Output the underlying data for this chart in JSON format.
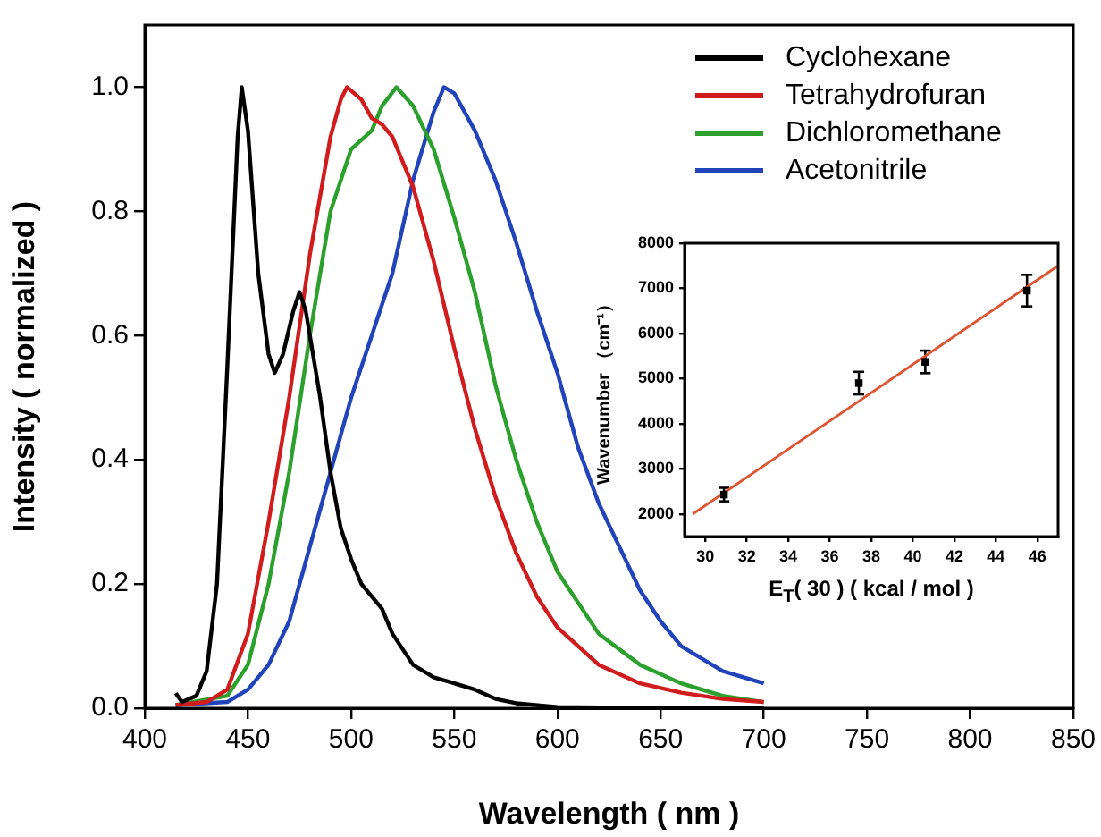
{
  "chart_data": [
    {
      "type": "line",
      "xlabel": "Wavelength ( nm )",
      "ylabel": "Intensity ( normalized )",
      "xlim": [
        400,
        850
      ],
      "xticks": [
        400,
        450,
        500,
        550,
        600,
        650,
        700,
        750,
        800,
        850
      ],
      "ylim": [
        0,
        1.1
      ],
      "yticks": [
        {
          "value": 0,
          "label": "0.0"
        },
        {
          "value": 0.2,
          "label": "0.2"
        },
        {
          "value": 0.4,
          "label": "0.4"
        },
        {
          "value": 0.6,
          "label": "0.6"
        },
        {
          "value": 0.8,
          "label": "0.8"
        },
        {
          "value": 1,
          "label": "1.0"
        }
      ],
      "legend": "top right",
      "series": [
        {
          "name": "Cyclohexane",
          "color": "#000000",
          "x": [
            415,
            418,
            425,
            430,
            435,
            440,
            445,
            447,
            450,
            455,
            460,
            463,
            467,
            472,
            475,
            478,
            485,
            490,
            495,
            500,
            505,
            510,
            515,
            520,
            530,
            540,
            550,
            560,
            570,
            580,
            600,
            650,
            700
          ],
          "values": [
            0.024,
            0.01,
            0.02,
            0.06,
            0.2,
            0.55,
            0.92,
            1.0,
            0.93,
            0.7,
            0.57,
            0.54,
            0.57,
            0.64,
            0.67,
            0.64,
            0.5,
            0.38,
            0.29,
            0.24,
            0.2,
            0.18,
            0.16,
            0.12,
            0.07,
            0.05,
            0.04,
            0.03,
            0.015,
            0.008,
            0.002,
            0,
            0
          ]
        },
        {
          "name": "Tetrahydrofuran",
          "color": "#d01c1c",
          "x": [
            415,
            430,
            440,
            450,
            460,
            470,
            480,
            490,
            495,
            498,
            505,
            510,
            515,
            520,
            530,
            540,
            550,
            560,
            570,
            580,
            590,
            600,
            620,
            640,
            660,
            680,
            700
          ],
          "values": [
            0.005,
            0.01,
            0.03,
            0.12,
            0.3,
            0.5,
            0.73,
            0.92,
            0.98,
            1.0,
            0.98,
            0.95,
            0.94,
            0.92,
            0.84,
            0.72,
            0.58,
            0.45,
            0.34,
            0.25,
            0.18,
            0.13,
            0.07,
            0.04,
            0.025,
            0.015,
            0.01
          ]
        },
        {
          "name": "Dichloromethane",
          "color": "#2ca02c",
          "x": [
            415,
            440,
            450,
            460,
            470,
            480,
            490,
            500,
            510,
            515,
            522,
            530,
            540,
            550,
            560,
            570,
            580,
            590,
            600,
            620,
            640,
            660,
            680,
            700
          ],
          "values": [
            0.005,
            0.02,
            0.07,
            0.2,
            0.38,
            0.6,
            0.8,
            0.9,
            0.93,
            0.97,
            1.0,
            0.97,
            0.9,
            0.79,
            0.67,
            0.52,
            0.4,
            0.3,
            0.22,
            0.12,
            0.07,
            0.04,
            0.02,
            0.01
          ]
        },
        {
          "name": "Acetonitrile",
          "color": "#2244bb",
          "x": [
            415,
            440,
            450,
            460,
            470,
            480,
            490,
            500,
            510,
            520,
            530,
            540,
            545,
            550,
            560,
            570,
            580,
            590,
            600,
            610,
            620,
            630,
            640,
            650,
            660,
            680,
            700
          ],
          "values": [
            0.005,
            0.01,
            0.03,
            0.07,
            0.14,
            0.26,
            0.38,
            0.5,
            0.6,
            0.7,
            0.85,
            0.96,
            1.0,
            0.99,
            0.93,
            0.85,
            0.75,
            0.64,
            0.54,
            0.42,
            0.33,
            0.26,
            0.19,
            0.14,
            0.1,
            0.06,
            0.04
          ]
        }
      ]
    },
    {
      "type": "scatter",
      "xlabel": "E$_{T}$( 30 ) ( kcal / mol )",
      "ylabel": "Wavenumber （cm⁻¹）",
      "xlim": [
        29,
        47
      ],
      "xticks": [
        30,
        32,
        34,
        36,
        38,
        40,
        42,
        44,
        46
      ],
      "ylim": [
        1500,
        8000
      ],
      "yticks": [
        2000,
        3000,
        4000,
        5000,
        6000,
        7000,
        8000
      ],
      "marker": "square",
      "series": [
        {
          "color": "#000000",
          "x": [
            30.9,
            37.4,
            40.6,
            45.5
          ],
          "values": [
            2430,
            4900,
            5370,
            6950
          ],
          "errors": [
            150,
            250,
            250,
            350
          ]
        },
        {
          "type": "line",
          "marker": "none",
          "color": "#dd5533",
          "x": [
            29.4,
            47
          ],
          "values": [
            2000,
            7500
          ]
        }
      ]
    }
  ]
}
